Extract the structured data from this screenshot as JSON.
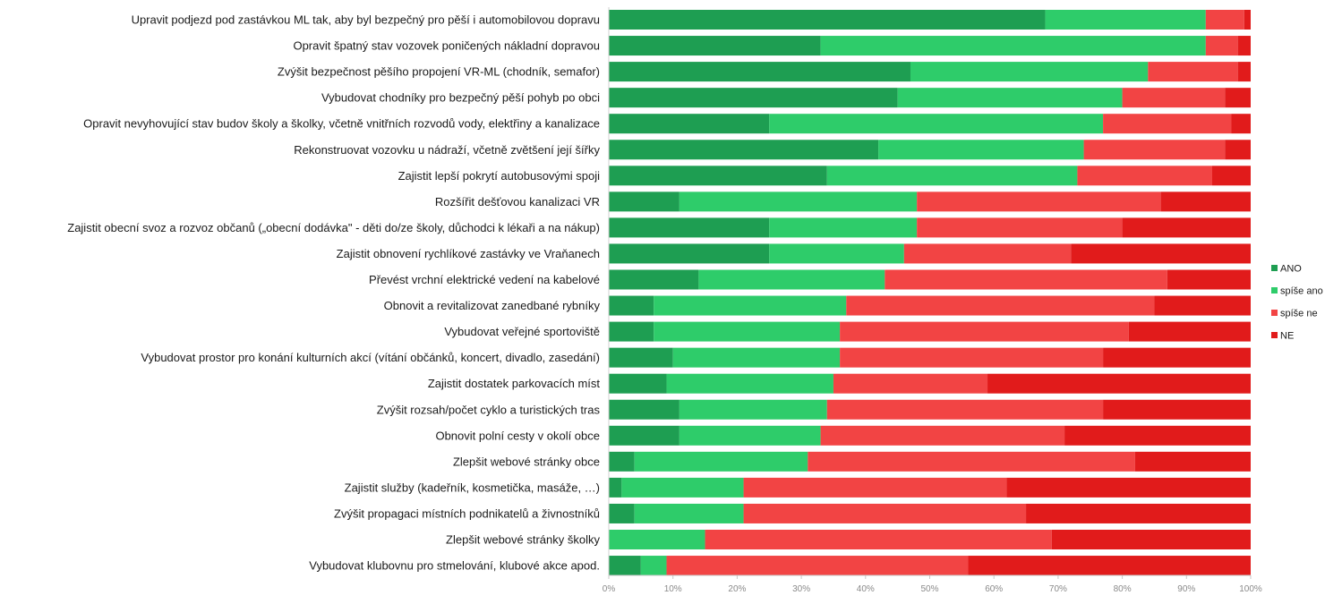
{
  "chart_data": {
    "type": "bar",
    "orientation": "horizontal",
    "stacked": "percent",
    "title": "",
    "xlabel": "",
    "ylabel": "",
    "xlim": [
      0,
      100
    ],
    "x_ticks": [
      "0%",
      "10%",
      "20%",
      "30%",
      "40%",
      "50%",
      "60%",
      "70%",
      "80%",
      "90%",
      "100%"
    ],
    "grid": false,
    "legend_position": "right",
    "categories": [
      "Upravit podjezd pod zastávkou ML tak, aby byl bezpečný pro pěší i automobilovou dopravu",
      "Opravit špatný stav vozovek poničených nákladní dopravou",
      "Zvýšit bezpečnost pěšího propojení VR-ML (chodník, semafor)",
      "Vybudovat chodníky pro bezpečný pěší pohyb po obci",
      "Opravit nevyhovující stav budov školy a školky, včetně vnitřních rozvodů vody, elektřiny a kanalizace",
      "Rekonstruovat vozovku u nádraží, včetně zvětšení její šířky",
      "Zajistit lepší pokrytí autobusovými spoji",
      "Rozšířit dešťovou kanalizaci VR",
      "Zajistit obecní svoz a rozvoz občanů („obecní dodávka\" - děti do/ze školy, důchodci k lékaři a na nákup)",
      "Zajistit obnovení rychlíkové zastávky ve Vraňanech",
      "Převést vrchní elektrické vedení na kabelové",
      "Obnovit a revitalizovat zanedbané rybníky",
      "Vybudovat veřejné sportoviště",
      "Vybudovat prostor pro konání kulturních akcí (vítání občánků, koncert, divadlo, zasedání)",
      "Zajistit dostatek parkovacích míst",
      "Zvýšit rozsah/počet cyklo a turistických tras",
      "Obnovit polní cesty v okolí obce",
      "Zlepšit webové stránky obce",
      "Zajistit služby (kadeřník, kosmetička, masáže, …)",
      "Zvýšit propagaci místních podnikatelů a živnostníků",
      "Zlepšit webové stránky školky",
      "Vybudovat klubovnu pro stmelování, klubové akce apod."
    ],
    "series": [
      {
        "name": "ANO",
        "color": "#1e9e52",
        "values": [
          68,
          33,
          47,
          45,
          25,
          42,
          34,
          11,
          25,
          25,
          14,
          7,
          7,
          10,
          9,
          11,
          11,
          4,
          2,
          4,
          0,
          5
        ]
      },
      {
        "name": "spíše ano",
        "color": "#2ecc6a",
        "values": [
          25,
          60,
          37,
          35,
          52,
          32,
          39,
          37,
          23,
          21,
          29,
          30,
          29,
          26,
          26,
          23,
          22,
          27,
          19,
          17,
          15,
          4
        ]
      },
      {
        "name": "spíše ne",
        "color": "#f24444",
        "values": [
          6,
          5,
          14,
          16,
          20,
          22,
          21,
          38,
          32,
          26,
          44,
          48,
          45,
          41,
          24,
          43,
          38,
          51,
          41,
          44,
          54,
          47
        ]
      },
      {
        "name": "NE",
        "color": "#e11b1b",
        "values": [
          1,
          2,
          2,
          4,
          3,
          4,
          6,
          14,
          20,
          28,
          13,
          15,
          19,
          23,
          41,
          23,
          29,
          18,
          38,
          35,
          31,
          44
        ]
      }
    ]
  }
}
